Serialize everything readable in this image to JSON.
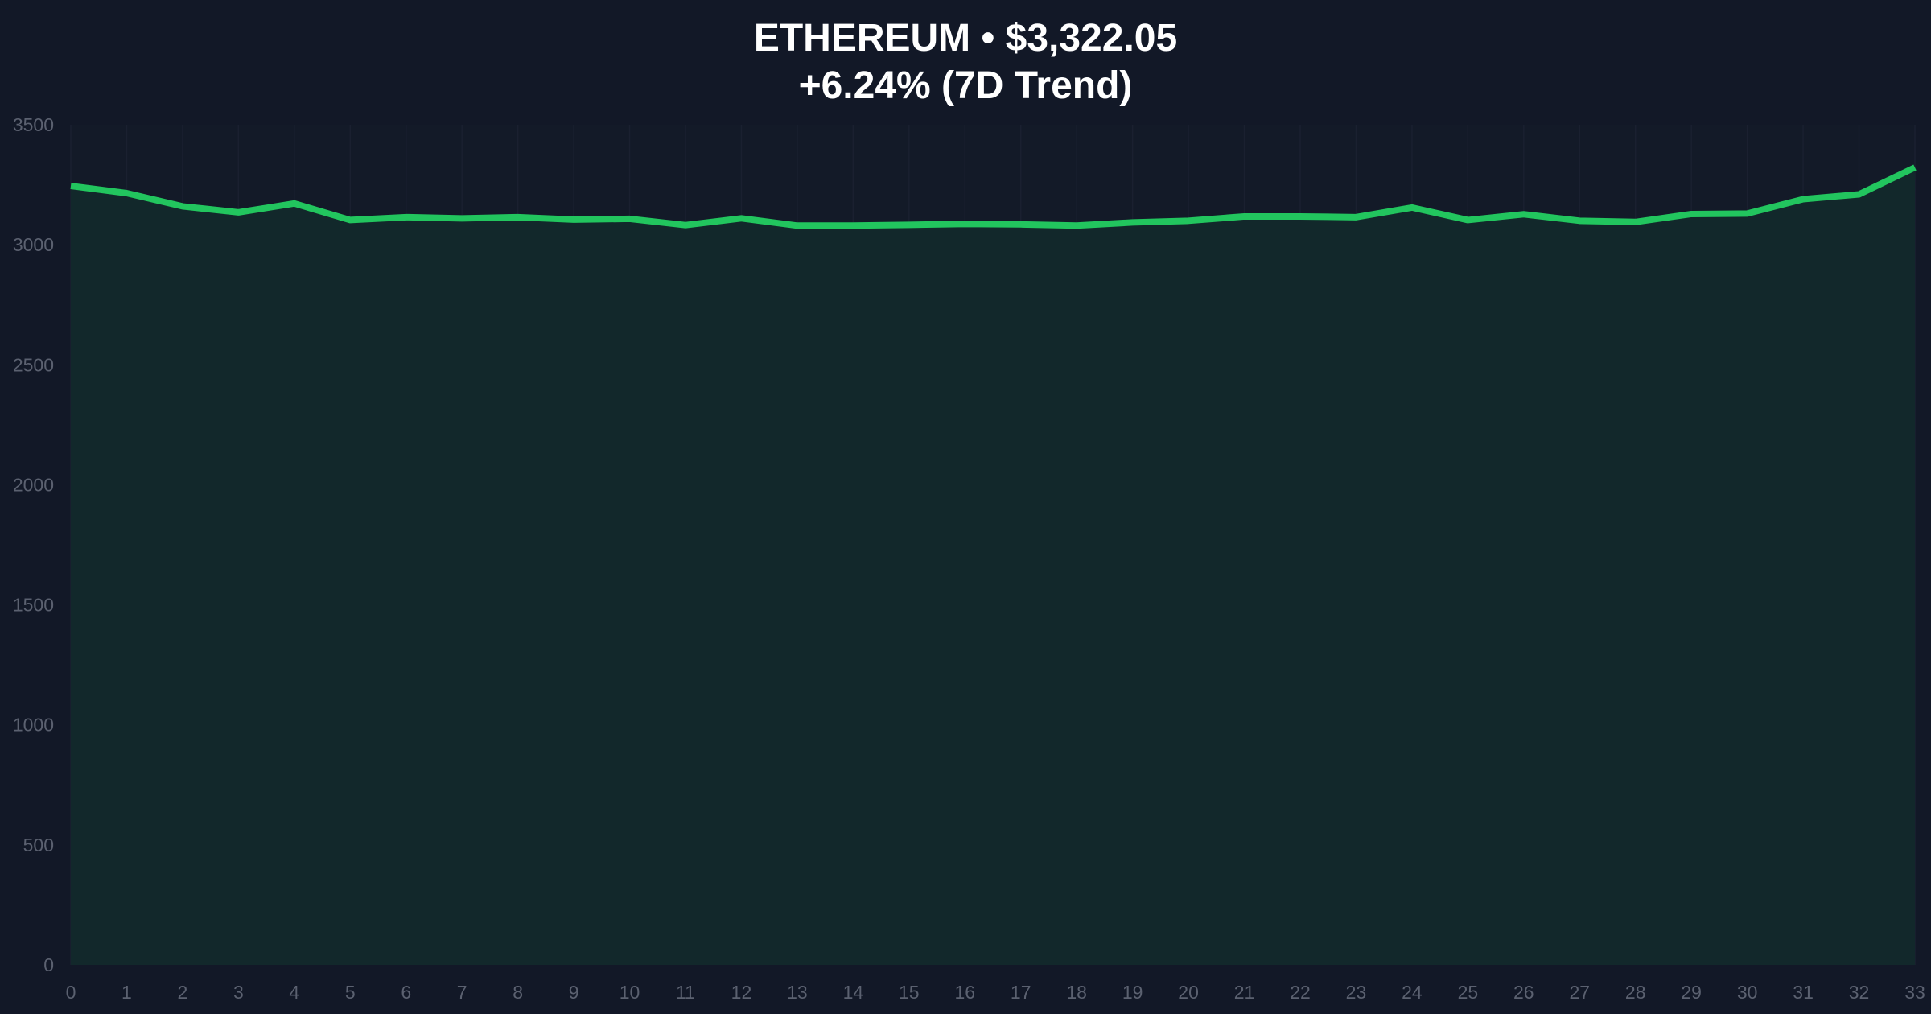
{
  "chart_data": {
    "type": "area",
    "title": "ETHEREUM • $3,322.05",
    "subtitle": "+6.24% (7D Trend)",
    "xlabel": "",
    "ylabel": "",
    "x": [
      0,
      1,
      2,
      3,
      4,
      5,
      6,
      7,
      8,
      9,
      10,
      11,
      12,
      13,
      14,
      15,
      16,
      17,
      18,
      19,
      20,
      21,
      22,
      23,
      24,
      25,
      26,
      27,
      28,
      29,
      30,
      31,
      32,
      33
    ],
    "x_ticks": [
      "0",
      "1",
      "2",
      "3",
      "4",
      "5",
      "6",
      "7",
      "8",
      "9",
      "10",
      "11",
      "12",
      "13",
      "14",
      "15",
      "16",
      "17",
      "18",
      "19",
      "20",
      "21",
      "22",
      "23",
      "24",
      "25",
      "26",
      "27",
      "28",
      "29",
      "30",
      "31",
      "32",
      "33"
    ],
    "y_ticks": [
      "0",
      "500",
      "1000",
      "1500",
      "2000",
      "2500",
      "3000",
      "3500"
    ],
    "xlim": [
      0,
      33
    ],
    "ylim": [
      0,
      3500
    ],
    "grid": true,
    "series": [
      {
        "values": [
          3245,
          3215,
          3160,
          3135,
          3172,
          3103,
          3115,
          3110,
          3115,
          3105,
          3108,
          3082,
          3110,
          3080,
          3080,
          3083,
          3087,
          3085,
          3080,
          3093,
          3100,
          3118,
          3118,
          3115,
          3155,
          3103,
          3127,
          3100,
          3095,
          3128,
          3130,
          3190,
          3210,
          3322.05
        ]
      }
    ],
    "colors": {
      "background": "#121827",
      "plot_background": "#131a28",
      "line": "#22c55e",
      "fill": "#12282b",
      "grid": "#1a2030",
      "tick_text": "#5b6170",
      "title": "#ffffff"
    }
  }
}
